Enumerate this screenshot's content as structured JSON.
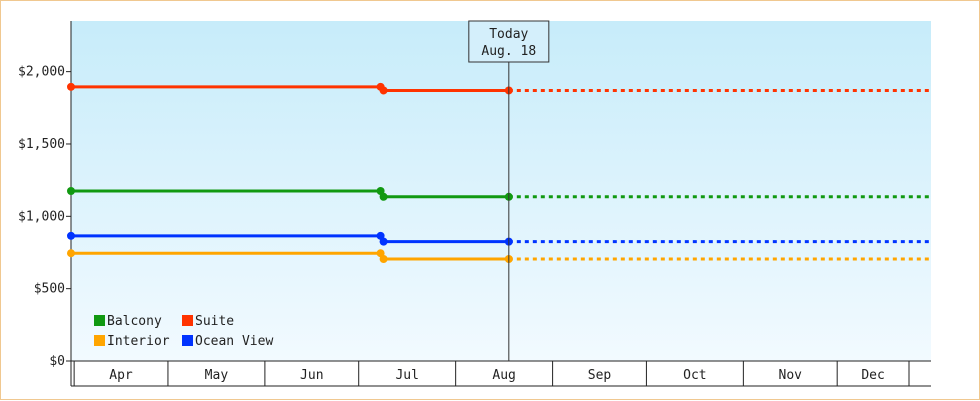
{
  "chart_data": {
    "type": "line",
    "y_ticks": [
      "$0",
      "$500",
      "$1,000",
      "$1,500",
      "$2,000"
    ],
    "y_tick_values": [
      0,
      500,
      1000,
      1500,
      2000
    ],
    "ylim": [
      0,
      2350
    ],
    "x_ticks": [
      "Apr",
      "May",
      "Jun",
      "Jul",
      "Aug",
      "Sep",
      "Oct",
      "Nov",
      "Dec"
    ],
    "today": {
      "line1": "Today",
      "line2": "Aug. 18",
      "x": "2019-08-18"
    },
    "xlim": [
      "2019-03-31",
      "2019-12-31"
    ],
    "change_date": "2019-07-08",
    "series": [
      {
        "name": "Balcony",
        "color": "#119911",
        "before": 1175,
        "after": 1135
      },
      {
        "name": "Suite",
        "color": "#ff3300",
        "before": 1895,
        "after": 1870
      },
      {
        "name": "Interior",
        "color": "#ffa500",
        "before": 745,
        "after": 705
      },
      {
        "name": "Ocean View",
        "color": "#0033ff",
        "before": 865,
        "after": 825
      }
    ],
    "legend_position": "bottom-left",
    "grid": false
  }
}
